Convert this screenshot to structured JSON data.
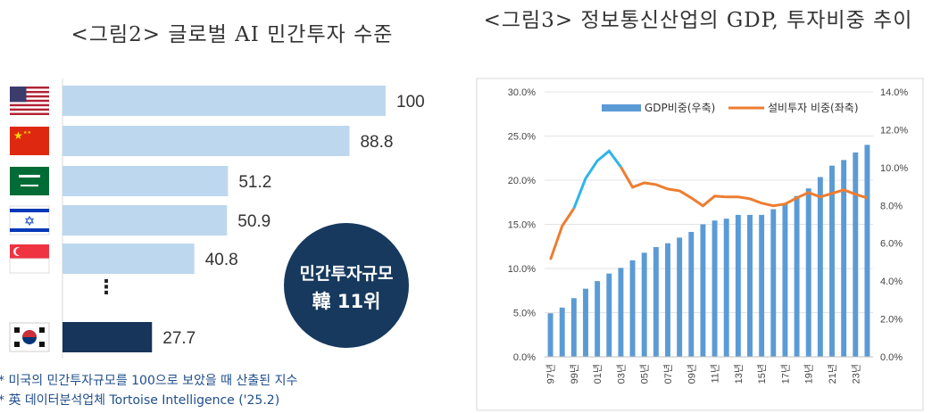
{
  "left": {
    "title": "<그림2> 글로벌 AI 민간투자 수준",
    "badge": {
      "line1": "민간투자규모",
      "line2": "韓 11위"
    },
    "notes": [
      "* 미국의 민간투자규모를 100으로 보았을 때 산출된 지수",
      "* 英 데이터분석업체 Tortoise Intelligence ('25.2)"
    ],
    "ellipsis": "⋮"
  },
  "right": {
    "title": "<그림3> 정보통신산업의 GDP, 투자비중 추이"
  },
  "chart_data": [
    {
      "type": "bar",
      "orientation": "horizontal",
      "categories": [
        "USA",
        "China",
        "Saudi Arabia",
        "Israel",
        "Singapore",
        "South Korea"
      ],
      "icons": [
        "flag-usa-icon",
        "flag-china-icon",
        "flag-saudi-icon",
        "flag-israel-icon",
        "flag-singapore-icon",
        "flag-korea-icon"
      ],
      "values": [
        100,
        88.8,
        51.2,
        50.9,
        40.8,
        27.7
      ],
      "labels": [
        "100",
        "88.8",
        "51.2",
        "50.9",
        "40.8",
        "27.7"
      ],
      "colors": {
        "default": "#bdd7ee",
        "highlight": "#17345a"
      },
      "highlight_index": 5,
      "xlim": [
        0,
        100
      ]
    },
    {
      "type": "bar+line",
      "categories": [
        "97년",
        "98년",
        "99년",
        "00년",
        "01년",
        "02년",
        "03년",
        "04년",
        "05년",
        "06년",
        "07년",
        "08년",
        "09년",
        "10년",
        "11년",
        "12년",
        "13년",
        "14년",
        "15년",
        "16년",
        "17년",
        "18년",
        "19년",
        "20년",
        "21년",
        "22년",
        "23년",
        "24년"
      ],
      "x_tick_labels": [
        "97년",
        "99년",
        "01년",
        "03년",
        "05년",
        "07년",
        "09년",
        "11년",
        "13년",
        "15년",
        "17년",
        "19년",
        "21년",
        "23년"
      ],
      "series": [
        {
          "name": "GDP비중(우축)",
          "type": "bar",
          "axis": "right",
          "color": "#5b9bd5",
          "values": [
            2.3,
            2.6,
            3.1,
            3.6,
            4.0,
            4.4,
            4.7,
            5.1,
            5.5,
            5.8,
            6.0,
            6.3,
            6.6,
            7.0,
            7.2,
            7.3,
            7.5,
            7.5,
            7.5,
            7.8,
            8.1,
            8.5,
            8.9,
            9.5,
            10.1,
            10.4,
            10.8,
            11.2
          ]
        },
        {
          "name": "설비투자 비중(좌축)",
          "type": "line",
          "axis": "left",
          "color": "#ed7d31",
          "highlight_color": "#2eb5e8",
          "values": [
            11.0,
            14.8,
            16.8,
            20.2,
            22.2,
            23.3,
            21.5,
            19.2,
            19.7,
            19.5,
            19.0,
            18.8,
            18.0,
            17.1,
            18.2,
            18.1,
            18.1,
            17.9,
            17.4,
            17.1,
            17.3,
            18.0,
            18.6,
            18.1,
            18.5,
            18.9,
            18.4,
            18.0
          ],
          "highlight_range": [
            2,
            6
          ]
        }
      ],
      "y_left": {
        "ticks": [
          "0.0%",
          "5.0%",
          "10.0%",
          "15.0%",
          "20.0%",
          "25.0%",
          "30.0%"
        ],
        "ylim": [
          0,
          30
        ]
      },
      "y_right": {
        "ticks": [
          "0.0%",
          "2.0%",
          "4.0%",
          "6.0%",
          "8.0%",
          "10.0%",
          "12.0%",
          "14.0%"
        ],
        "ylim": [
          0,
          14
        ]
      },
      "grid": true,
      "legend_position": "top"
    }
  ]
}
